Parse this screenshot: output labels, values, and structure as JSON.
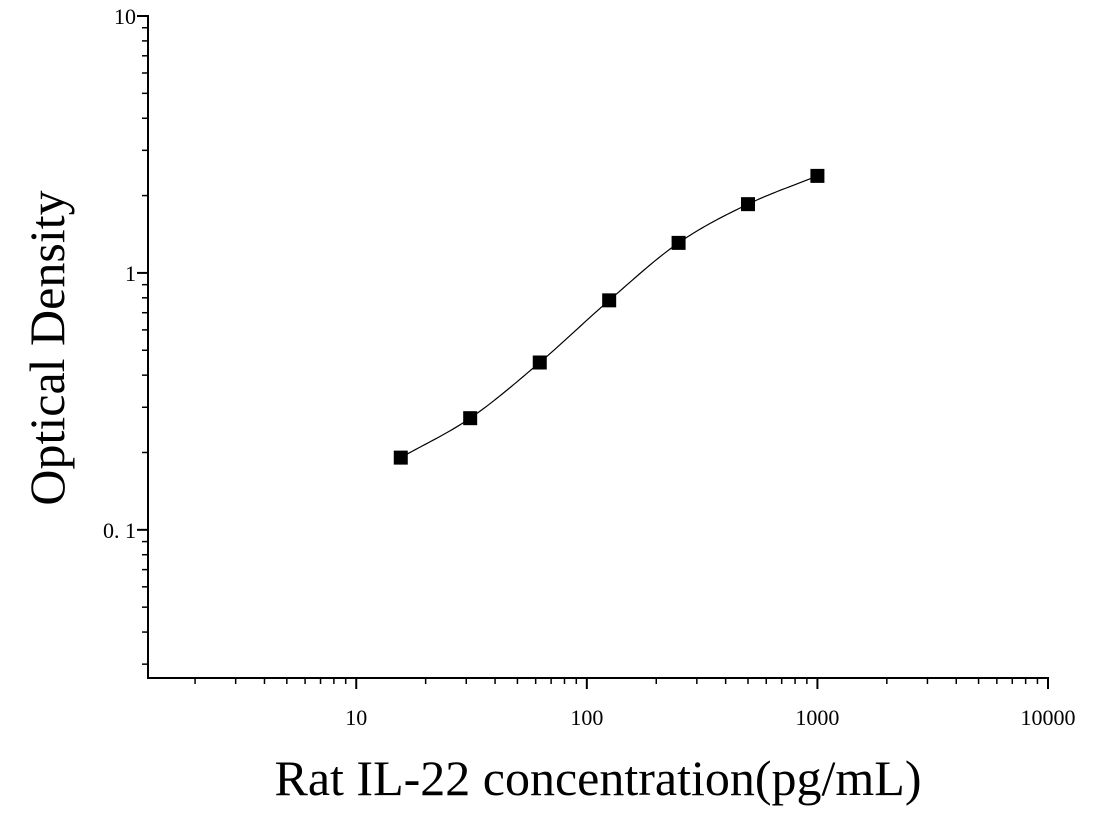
{
  "chart_data": {
    "type": "scatter",
    "xlabel": "Rat IL-22 concentration(pg/mL)",
    "ylabel": "Optical Density",
    "x_scale": "log",
    "y_scale": "log",
    "xlim": [
      1.25,
      10000
    ],
    "ylim": [
      0.0265,
      10
    ],
    "x_ticks": [
      {
        "value": 10,
        "label": "10"
      },
      {
        "value": 100,
        "label": "100"
      },
      {
        "value": 1000,
        "label": "1000"
      },
      {
        "value": 10000,
        "label": "10000"
      }
    ],
    "y_ticks": [
      {
        "value": 0.1,
        "label": "0. 1"
      },
      {
        "value": 1,
        "label": "1"
      },
      {
        "value": 10,
        "label": "10"
      }
    ],
    "grid": false,
    "legend": "none",
    "series": [
      {
        "marker": "square",
        "color": "#000000",
        "x": [
          15.6,
          31.2,
          62.5,
          125,
          250,
          500,
          1000
        ],
        "y": [
          0.191,
          0.272,
          0.448,
          0.782,
          1.309,
          1.852,
          2.386
        ]
      }
    ],
    "fit_curve": {
      "type": "four-parameter logistic",
      "color": "#000000",
      "x_range": [
        15.6,
        1000
      ]
    }
  }
}
